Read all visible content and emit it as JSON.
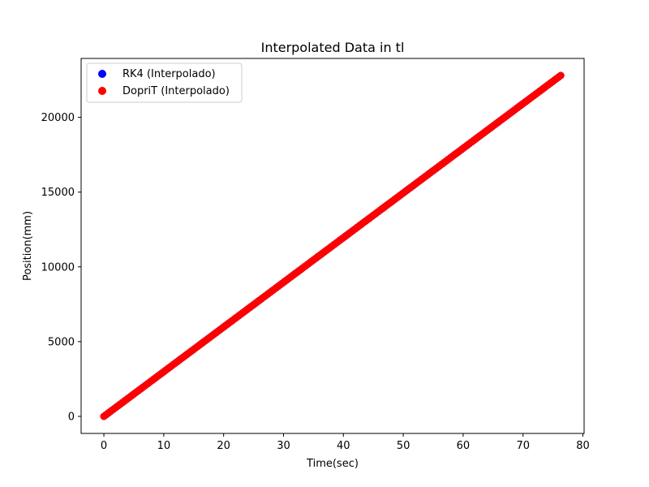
{
  "chart_data": {
    "type": "scatter",
    "title": "Interpolated Data in tl",
    "xlabel": "Time(sec)",
    "ylabel": "Position(mm)",
    "xlim": [
      -3.8,
      80.2
    ],
    "ylim": [
      -1140,
      23940
    ],
    "xticks": [
      0,
      10,
      20,
      30,
      40,
      50,
      60,
      70,
      80
    ],
    "yticks": [
      0,
      5000,
      10000,
      15000,
      20000
    ],
    "grid": false,
    "legend_position": "top-left",
    "series": [
      {
        "name": "RK4 (Interpolado)",
        "color": "#0000ff",
        "x_range": [
          0,
          76.3
        ],
        "y_range": [
          0,
          22800
        ]
      },
      {
        "name": "DopriT (Interpolado)",
        "color": "#ff0000",
        "x_range": [
          0,
          76.3
        ],
        "y_range": [
          0,
          22800
        ]
      }
    ]
  }
}
